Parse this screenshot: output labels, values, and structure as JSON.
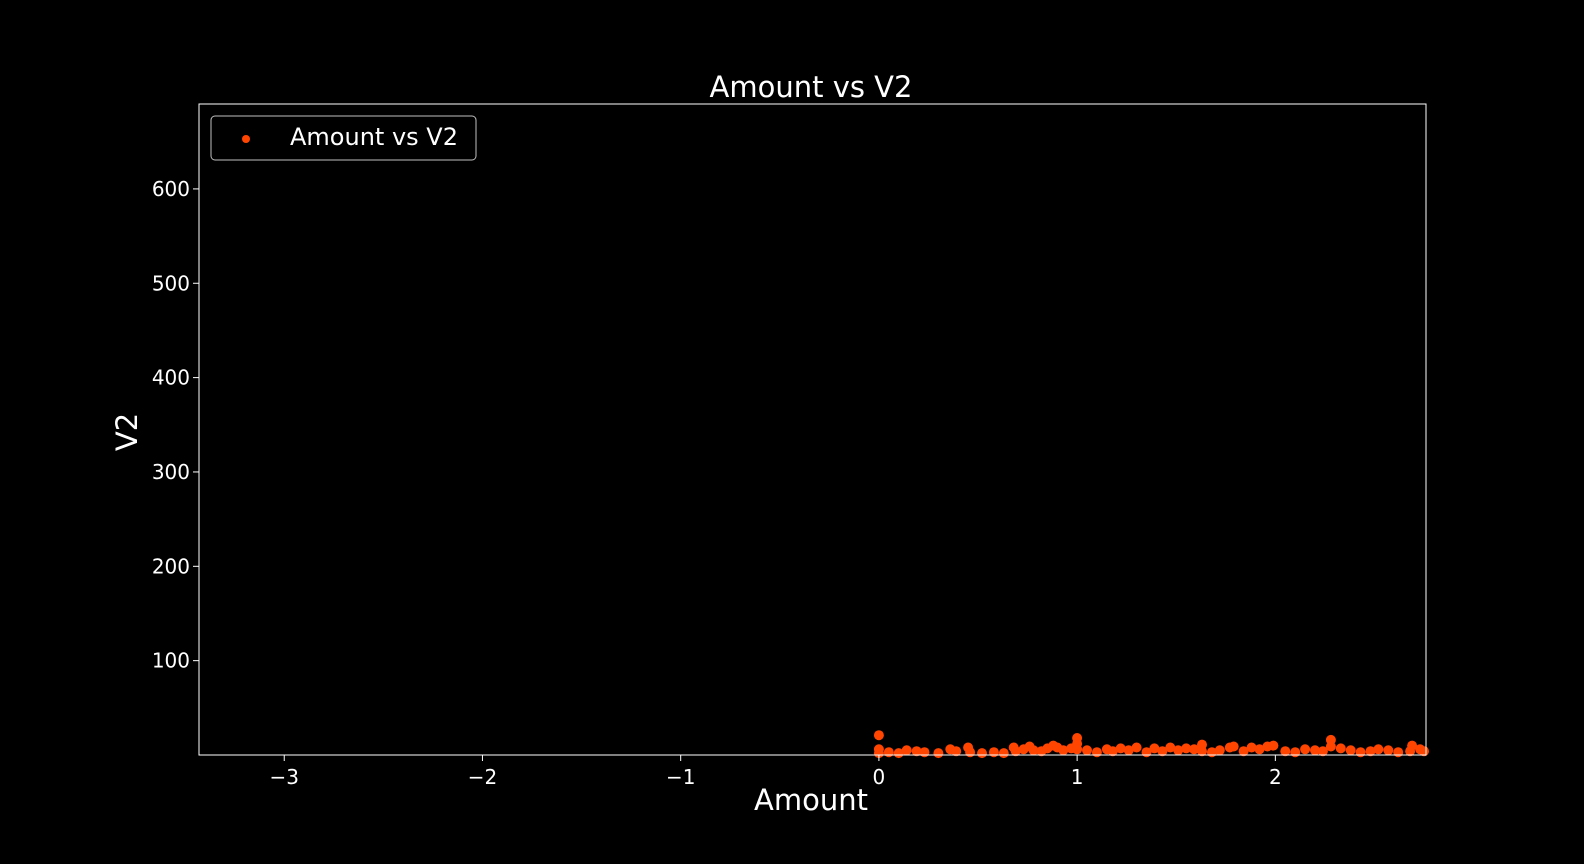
{
  "chart_data": {
    "type": "scatter",
    "title": "Amount vs V2",
    "xlabel": "Amount",
    "ylabel": "V2",
    "xlim": [
      -3.43,
      2.76
    ],
    "ylim": [
      0,
      690
    ],
    "xticks": [
      -3,
      -2,
      -1,
      0,
      1,
      2
    ],
    "xtick_labels": [
      "−3",
      "−2",
      "−1",
      "0",
      "1",
      "2"
    ],
    "yticks": [
      100,
      200,
      300,
      400,
      500,
      600
    ],
    "ytick_labels": [
      "100",
      "200",
      "300",
      "400",
      "500",
      "600"
    ],
    "grid": false,
    "legend": {
      "placement": "upper-left",
      "entries": [
        "Amount vs V2"
      ]
    },
    "colors": {
      "background": "#000000",
      "foreground": "#ffffff",
      "series": "#ff4500"
    },
    "series": [
      {
        "name": "Amount vs V2",
        "x": [
          0.0,
          0.0,
          0.0,
          0.05,
          0.1,
          0.14,
          0.19,
          0.23,
          0.3,
          0.36,
          0.39,
          0.45,
          0.46,
          0.52,
          0.58,
          0.63,
          0.68,
          0.69,
          0.73,
          0.76,
          0.78,
          0.82,
          0.85,
          0.88,
          0.9,
          0.93,
          0.97,
          1.0,
          1.0,
          1.0,
          1.05,
          1.1,
          1.15,
          1.18,
          1.22,
          1.26,
          1.3,
          1.35,
          1.39,
          1.43,
          1.47,
          1.51,
          1.55,
          1.59,
          1.63,
          1.63,
          1.68,
          1.72,
          1.77,
          1.79,
          1.84,
          1.88,
          1.92,
          1.96,
          1.99,
          2.05,
          2.1,
          2.15,
          2.2,
          2.24,
          2.28,
          2.28,
          2.33,
          2.38,
          2.43,
          2.48,
          2.52,
          2.57,
          2.62,
          2.68,
          2.69,
          2.73,
          2.75
        ],
        "y": [
          21,
          6,
          2,
          3,
          2,
          5,
          4,
          3,
          2,
          6,
          4,
          8,
          3,
          2,
          3,
          2,
          8,
          4,
          6,
          9,
          5,
          4,
          7,
          10,
          8,
          5,
          7,
          18,
          12,
          6,
          5,
          3,
          6,
          4,
          7,
          5,
          8,
          3,
          7,
          4,
          8,
          5,
          7,
          6,
          11,
          4,
          3,
          5,
          8,
          9,
          4,
          8,
          6,
          9,
          10,
          4,
          3,
          6,
          5,
          4,
          16,
          9,
          7,
          5,
          3,
          4,
          6,
          5,
          3,
          4,
          10,
          6,
          4
        ]
      }
    ]
  }
}
